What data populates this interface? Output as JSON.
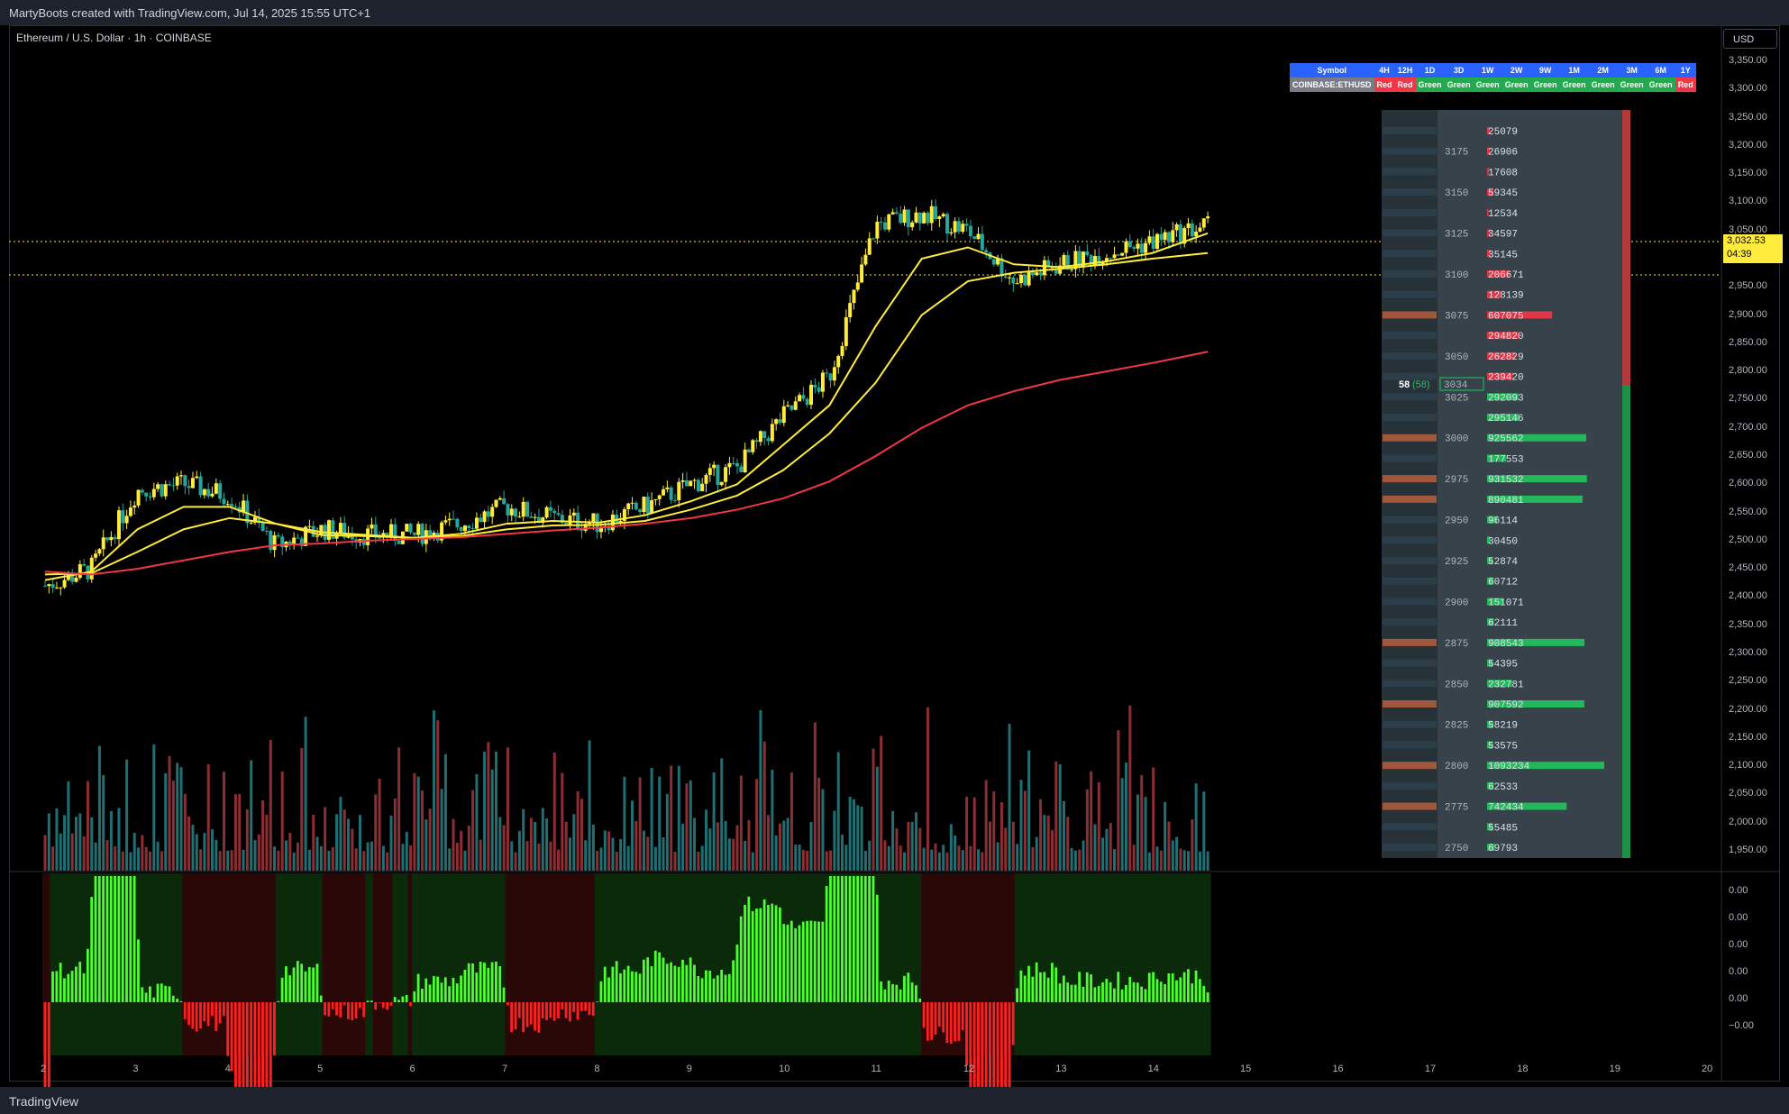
{
  "header": {
    "title": "MartyBoots created with TradingView.com, Jul 14, 2025 15:55 UTC+1"
  },
  "footer": {
    "brand": "TradingView"
  },
  "symbol_label": "Ethereum / U.S. Dollar · 1h · COINBASE",
  "currency": "USD",
  "last_price": {
    "value": "3,032.53",
    "countdown": "04:39"
  },
  "colors": {
    "up": "#ffeb3b",
    "down": "#26a69a",
    "ema_short": "#ffeb3b",
    "ema_long": "#f23645",
    "vp_buy": "#22c55e",
    "vp_sell": "#f23645"
  },
  "trend_table": {
    "headers": [
      "Symbol",
      "4H",
      "12H",
      "1D",
      "3D",
      "1W",
      "2W",
      "9W",
      "1M",
      "2M",
      "3M",
      "6M",
      "1Y"
    ],
    "symbol": "COINBASE:ETHUSD",
    "values": [
      "Red",
      "Red",
      "Green",
      "Green",
      "Green",
      "Green",
      "Green",
      "Green",
      "Green",
      "Green",
      "Green",
      "Red"
    ]
  },
  "volume_profile": {
    "current_count": "58",
    "current_count_paren": "(58)",
    "current_price": "3034",
    "levels": [
      {
        "price": "",
        "volume": "25079"
      },
      {
        "price": "3175",
        "volume": "26906"
      },
      {
        "price": "",
        "volume": "17608"
      },
      {
        "price": "3150",
        "volume": "59345"
      },
      {
        "price": "",
        "volume": "12534"
      },
      {
        "price": "3125",
        "volume": "34597"
      },
      {
        "price": "",
        "volume": "35145"
      },
      {
        "price": "3100",
        "volume": "206671"
      },
      {
        "price": "",
        "volume": "128139"
      },
      {
        "price": "3075",
        "volume": "607075"
      },
      {
        "price": "",
        "volume": "294820"
      },
      {
        "price": "3050",
        "volume": "262829"
      },
      {
        "price": "",
        "volume": "239420"
      },
      {
        "price": "3025",
        "volume": "292093"
      },
      {
        "price": "",
        "volume": "295146"
      },
      {
        "price": "3000",
        "volume": "925562"
      },
      {
        "price": "",
        "volume": "177553"
      },
      {
        "price": "2975",
        "volume": "931532"
      },
      {
        "price": "",
        "volume": "890481"
      },
      {
        "price": "2950",
        "volume": "96114"
      },
      {
        "price": "",
        "volume": "30450"
      },
      {
        "price": "2925",
        "volume": "52874"
      },
      {
        "price": "",
        "volume": "60712"
      },
      {
        "price": "2900",
        "volume": "151071"
      },
      {
        "price": "",
        "volume": "62111"
      },
      {
        "price": "2875",
        "volume": "908543"
      },
      {
        "price": "",
        "volume": "54395"
      },
      {
        "price": "2850",
        "volume": "232781"
      },
      {
        "price": "",
        "volume": "907592"
      },
      {
        "price": "2825",
        "volume": "58219"
      },
      {
        "price": "",
        "volume": "53575"
      },
      {
        "price": "2800",
        "volume": "1093234"
      },
      {
        "price": "",
        "volume": "62533"
      },
      {
        "price": "2775",
        "volume": "742434"
      },
      {
        "price": "",
        "volume": "55485"
      },
      {
        "price": "2750",
        "volume": "69793"
      }
    ]
  },
  "chart_data": {
    "type": "line",
    "title": "Ethereum / U.S. Dollar · 1h · COINBASE",
    "xlabel": "",
    "ylabel": "",
    "x_ticks": [
      "2",
      "3",
      "4",
      "5",
      "6",
      "7",
      "8",
      "9",
      "10",
      "11",
      "12",
      "13",
      "14",
      "15",
      "16",
      "17",
      "18",
      "19",
      "20"
    ],
    "y_ticks": [
      "3,350.00",
      "3,300.00",
      "3,250.00",
      "3,200.00",
      "3,150.00",
      "3,100.00",
      "3,050.00",
      "3,000.00",
      "2,950.00",
      "2,900.00",
      "2,850.00",
      "2,800.00",
      "2,750.00",
      "2,700.00",
      "2,650.00",
      "2,600.00",
      "2,550.00",
      "2,500.00",
      "2,450.00",
      "2,400.00",
      "2,350.00",
      "2,300.00",
      "2,250.00",
      "2,200.00",
      "2,150.00",
      "2,100.00",
      "2,050.00",
      "2,000.00",
      "1,950.00"
    ],
    "ylim": [
      1950,
      3350
    ],
    "osc_ticks": [
      "0.00",
      "0.00",
      "0.00",
      "0.00",
      "0.00",
      "−0.00"
    ],
    "x": [
      2,
      2.5,
      3,
      3.5,
      4,
      4.5,
      5,
      5.5,
      6,
      6.5,
      7,
      7.5,
      8,
      8.5,
      9,
      9.5,
      10,
      10.5,
      11,
      11.5,
      12,
      12.5,
      13,
      13.5,
      14,
      14.6
    ],
    "series": [
      {
        "values": [
          2420,
          2450,
          2590,
          2600,
          2580,
          2490,
          2520,
          2510,
          2510,
          2530,
          2560,
          2540,
          2530,
          2560,
          2600,
          2630,
          2720,
          2790,
          3060,
          3080,
          3050,
          2960,
          2990,
          3010,
          3030,
          3060
        ]
      },
      {
        "values": [
          2430,
          2445,
          2520,
          2560,
          2560,
          2530,
          2510,
          2508,
          2505,
          2512,
          2530,
          2535,
          2532,
          2545,
          2570,
          2600,
          2670,
          2740,
          2880,
          3000,
          3020,
          2990,
          2985,
          2995,
          3010,
          3045
        ]
      },
      {
        "values": [
          2440,
          2442,
          2480,
          2520,
          2540,
          2530,
          2515,
          2510,
          2505,
          2508,
          2520,
          2527,
          2528,
          2535,
          2555,
          2580,
          2625,
          2690,
          2780,
          2900,
          2960,
          2975,
          2982,
          2990,
          3000,
          3010
        ]
      },
      {
        "values": [
          2445,
          2440,
          2450,
          2465,
          2480,
          2492,
          2495,
          2500,
          2503,
          2506,
          2512,
          2518,
          2523,
          2530,
          2540,
          2555,
          2575,
          2605,
          2650,
          2700,
          2740,
          2765,
          2785,
          2800,
          2815,
          2835
        ]
      }
    ]
  }
}
